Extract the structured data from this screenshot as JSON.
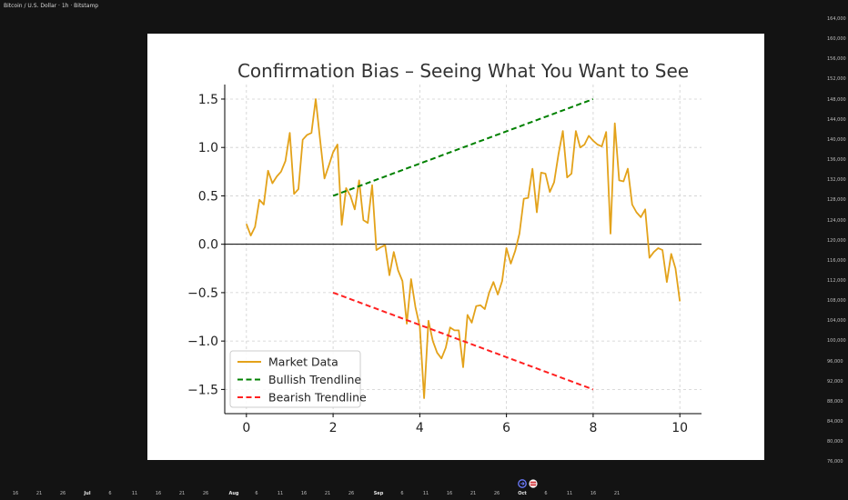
{
  "window": {
    "title": "Bitcoin / U.S. Dollar · 1h · Bitstamp"
  },
  "price_axis": {
    "labels": [
      "164,000",
      "160,000",
      "156,000",
      "152,000",
      "148,000",
      "144,000",
      "140,000",
      "136,000",
      "132,000",
      "128,000",
      "124,000",
      "120,000",
      "116,000",
      "112,000",
      "108,000",
      "104,000",
      "100,000",
      "96,000",
      "92,000",
      "88,000",
      "84,000",
      "80,000",
      "76,000"
    ]
  },
  "time_axis": {
    "labels": [
      {
        "text": "16"
      },
      {
        "text": "21"
      },
      {
        "text": "26"
      },
      {
        "text": "Jul"
      },
      {
        "text": "6"
      },
      {
        "text": "11"
      },
      {
        "text": "16"
      },
      {
        "text": "21"
      },
      {
        "text": "26"
      },
      {
        "text": "Aug"
      },
      {
        "text": "6"
      },
      {
        "text": "11"
      },
      {
        "text": "16"
      },
      {
        "text": "21"
      },
      {
        "text": "26"
      },
      {
        "text": "Sep"
      },
      {
        "text": "6"
      },
      {
        "text": "11"
      },
      {
        "text": "16"
      },
      {
        "text": "21"
      },
      {
        "text": "26"
      },
      {
        "text": "Oct"
      },
      {
        "text": "6"
      },
      {
        "text": "11"
      },
      {
        "text": "16"
      },
      {
        "text": "21"
      }
    ]
  },
  "colors": {
    "page_bg": "#131313",
    "card_bg": "#ffffff",
    "market": "#e3a21a",
    "bullish": "#008000",
    "bearish": "#ff2020",
    "grid": "#cfcfcf",
    "zero_line": "#000000"
  },
  "chart_data": {
    "type": "line",
    "title": "Confirmation Bias – Seeing What You Want to See",
    "xlabel": "",
    "ylabel": "",
    "xlim": [
      -0.5,
      10.5
    ],
    "ylim": [
      -1.75,
      1.65
    ],
    "xticks": [
      0,
      2,
      4,
      6,
      8,
      10
    ],
    "xtick_labels": [
      "0",
      "2",
      "4",
      "6",
      "8",
      "10"
    ],
    "yticks": [
      -1.5,
      -1.0,
      -0.5,
      0.0,
      0.5,
      1.0,
      1.5
    ],
    "ytick_labels": [
      "−1.5",
      "−1.0",
      "−0.5",
      "0.0",
      "0.5",
      "1.0",
      "1.5"
    ],
    "grid": true,
    "grid_style": "dashed",
    "horizontal_reference_line": 0,
    "legend_position": "lower-left",
    "series": [
      {
        "name": "Market Data",
        "style": "solid",
        "color": "#e3a21a",
        "x": [
          0.0,
          0.1,
          0.2,
          0.3,
          0.4,
          0.5,
          0.6,
          0.7,
          0.8,
          0.9,
          1.0,
          1.1,
          1.2,
          1.3,
          1.4,
          1.5,
          1.6,
          1.7,
          1.8,
          1.9,
          2.0,
          2.1,
          2.2,
          2.3,
          2.4,
          2.5,
          2.6,
          2.7,
          2.8,
          2.9,
          3.0,
          3.1,
          3.2,
          3.3,
          3.4,
          3.5,
          3.6,
          3.7,
          3.8,
          3.9,
          4.0,
          4.1,
          4.2,
          4.3,
          4.4,
          4.5,
          4.6,
          4.7,
          4.8,
          4.9,
          5.0,
          5.1,
          5.2,
          5.3,
          5.4,
          5.5,
          5.6,
          5.7,
          5.8,
          5.9,
          6.0,
          6.1,
          6.2,
          6.3,
          6.4,
          6.5,
          6.6,
          6.7,
          6.8,
          6.9,
          7.0,
          7.1,
          7.2,
          7.3,
          7.4,
          7.5,
          7.6,
          7.7,
          7.8,
          7.9,
          8.0,
          8.1,
          8.2,
          8.3,
          8.4,
          8.5,
          8.6,
          8.7,
          8.8,
          8.9,
          9.0,
          9.1,
          9.2,
          9.3,
          9.4,
          9.5,
          9.6,
          9.7,
          9.8,
          9.9,
          10.0
        ],
        "values": [
          0.21,
          0.09,
          0.18,
          0.46,
          0.41,
          0.76,
          0.63,
          0.7,
          0.75,
          0.86,
          1.15,
          0.52,
          0.57,
          1.08,
          1.13,
          1.15,
          1.5,
          1.08,
          0.68,
          0.81,
          0.95,
          1.03,
          0.2,
          0.58,
          0.5,
          0.36,
          0.66,
          0.25,
          0.22,
          0.61,
          -0.06,
          -0.03,
          -0.01,
          -0.32,
          -0.08,
          -0.27,
          -0.38,
          -0.82,
          -0.36,
          -0.65,
          -0.85,
          -1.59,
          -0.79,
          -1.0,
          -1.12,
          -1.18,
          -1.07,
          -0.86,
          -0.89,
          -0.89,
          -1.27,
          -0.73,
          -0.81,
          -0.64,
          -0.63,
          -0.67,
          -0.5,
          -0.39,
          -0.52,
          -0.38,
          -0.04,
          -0.2,
          -0.07,
          0.11,
          0.47,
          0.48,
          0.78,
          0.33,
          0.74,
          0.73,
          0.54,
          0.64,
          0.93,
          1.17,
          0.69,
          0.73,
          1.17,
          1.0,
          1.03,
          1.12,
          1.07,
          1.03,
          1.01,
          1.16,
          0.11,
          1.25,
          0.66,
          0.65,
          0.78,
          0.41,
          0.33,
          0.28,
          0.36,
          -0.14,
          -0.08,
          -0.04,
          -0.06,
          -0.39,
          -0.1,
          -0.25,
          -0.59
        ]
      },
      {
        "name": "Bullish Trendline",
        "style": "dashed",
        "color": "#008000",
        "x": [
          2,
          8
        ],
        "values": [
          0.5,
          1.5
        ]
      },
      {
        "name": "Bearish Trendline",
        "style": "dashed",
        "color": "#ff2020",
        "x": [
          2,
          8
        ],
        "values": [
          -0.5,
          -1.5
        ]
      }
    ]
  }
}
